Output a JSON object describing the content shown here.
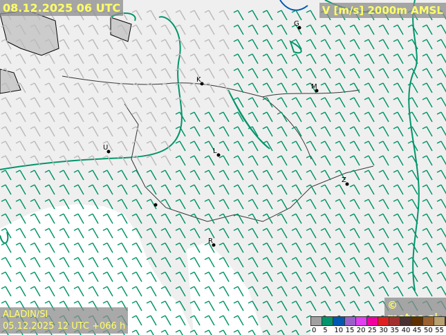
{
  "header": {
    "valid_time": "08.12.2025 06 UTC",
    "parameter": "V [m/s] 2000m AMSL"
  },
  "footer": {
    "model": "ALADIN/SI",
    "run": "05.12.2025 12 UTC +066 h",
    "copyright": "© meteo.si"
  },
  "legend": {
    "colors": [
      "#a0a0a0",
      "#00956a",
      "#0058b0",
      "#9a60c8",
      "#e040f0",
      "#f000a0",
      "#e02020",
      "#a03030",
      "#4a3030",
      "#603000",
      "#9a6030",
      "#b8a070"
    ],
    "labels": [
      "0",
      "5",
      "10",
      "15",
      "20",
      "25",
      "30",
      "35",
      "40",
      "45",
      "50",
      "55"
    ]
  },
  "cities": [
    {
      "label": "G"
    },
    {
      "label": "K"
    },
    {
      "label": "M"
    },
    {
      "label": "U"
    },
    {
      "label": "L"
    },
    {
      "label": "Z"
    },
    {
      "label": "R"
    }
  ],
  "colors": {
    "barb": "#00956a",
    "contour": "#00956a",
    "border": "#333333",
    "title_text": "#ffff66"
  }
}
